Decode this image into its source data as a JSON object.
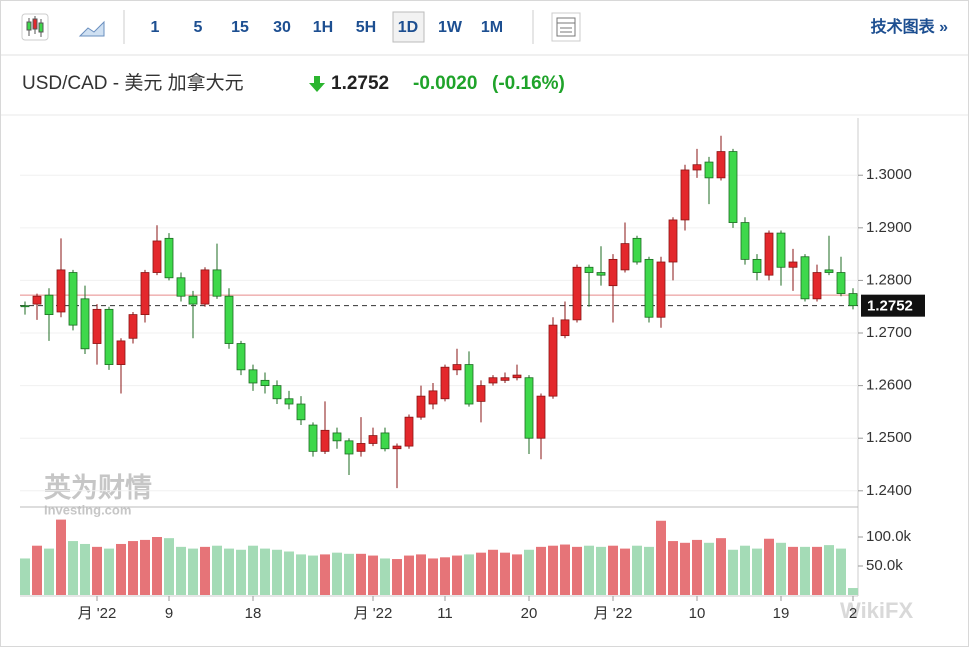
{
  "toolbar": {
    "intervals": [
      "1",
      "5",
      "15",
      "30",
      "1H",
      "5H",
      "1D",
      "1W",
      "1M"
    ],
    "active": 6,
    "link": "技术图表 »"
  },
  "header": {
    "symbol": "USD/CAD - 美元 加拿大元",
    "price": "1.2752",
    "change": "-0.0020",
    "change_pct": "(-0.16%)"
  },
  "watermarks": {
    "logo": "英为财情",
    "site": "Investing.com",
    "corner": "WikiFX"
  },
  "chart_data": {
    "type": "candlestick",
    "categories": [
      null,
      null,
      null,
      null,
      null,
      null,
      "月 '22",
      null,
      null,
      null,
      null,
      null,
      "9",
      null,
      null,
      null,
      null,
      null,
      null,
      "18",
      null,
      null,
      null,
      null,
      null,
      null,
      null,
      null,
      null,
      "月 '22",
      null,
      null,
      null,
      null,
      null,
      "11",
      null,
      null,
      null,
      null,
      null,
      null,
      "20",
      null,
      null,
      null,
      null,
      null,
      null,
      "月 '22",
      null,
      null,
      null,
      null,
      null,
      null,
      "10",
      null,
      null,
      null,
      null,
      null,
      null,
      "19",
      null,
      null,
      null,
      null,
      null,
      "2"
    ],
    "open": [
      1.2752,
      1.2755,
      1.2772,
      1.274,
      1.2815,
      1.2765,
      1.268,
      1.2745,
      1.264,
      1.269,
      1.2735,
      1.2815,
      1.288,
      1.2805,
      1.277,
      1.2755,
      1.282,
      1.277,
      1.268,
      1.263,
      1.261,
      1.26,
      1.2575,
      1.2565,
      1.2525,
      1.2475,
      1.251,
      1.2495,
      1.2475,
      1.249,
      1.251,
      1.248,
      1.2485,
      1.254,
      1.2565,
      1.2575,
      1.263,
      1.264,
      1.257,
      1.2605,
      1.261,
      1.2615,
      1.2615,
      1.25,
      1.258,
      1.2695,
      1.2725,
      1.2825,
      1.2815,
      1.279,
      1.282,
      1.288,
      1.284,
      1.273,
      1.2835,
      1.2915,
      1.301,
      1.3025,
      1.2995,
      1.3045,
      1.291,
      1.284,
      1.281,
      1.289,
      1.2825,
      1.2845,
      1.2765,
      1.282,
      1.2815,
      1.2775
    ],
    "high": [
      1.276,
      1.2775,
      1.2785,
      1.288,
      1.282,
      1.279,
      1.2755,
      1.275,
      1.269,
      1.274,
      1.282,
      1.2905,
      1.289,
      1.2815,
      1.278,
      1.2825,
      1.287,
      1.2785,
      1.2685,
      1.264,
      1.2625,
      1.261,
      1.259,
      1.258,
      1.253,
      1.257,
      1.252,
      1.25,
      1.254,
      1.252,
      1.252,
      1.249,
      1.2545,
      1.26,
      1.2605,
      1.264,
      1.267,
      1.2665,
      1.261,
      1.262,
      1.2625,
      1.264,
      1.262,
      1.2585,
      1.273,
      1.276,
      1.283,
      1.283,
      1.2865,
      1.285,
      1.291,
      1.2885,
      1.2845,
      1.2845,
      1.292,
      1.302,
      1.305,
      1.3035,
      1.3075,
      1.305,
      1.292,
      1.285,
      1.2895,
      1.2895,
      1.286,
      1.285,
      1.283,
      1.2885,
      1.2845,
      1.2785
    ],
    "low": [
      1.2735,
      1.2725,
      1.2685,
      1.273,
      1.2705,
      1.266,
      1.264,
      1.263,
      1.2585,
      1.268,
      1.272,
      1.281,
      1.28,
      1.276,
      1.269,
      1.275,
      1.2765,
      1.267,
      1.262,
      1.259,
      1.2585,
      1.2565,
      1.2555,
      1.2525,
      1.2465,
      1.247,
      1.248,
      1.243,
      1.2465,
      1.2485,
      1.2475,
      1.2405,
      1.248,
      1.2535,
      1.2555,
      1.257,
      1.262,
      1.256,
      1.253,
      1.26,
      1.2605,
      1.261,
      1.247,
      1.246,
      1.2575,
      1.269,
      1.272,
      1.275,
      1.279,
      1.272,
      1.2815,
      1.283,
      1.272,
      1.271,
      1.28,
      1.2895,
      1.2995,
      1.2945,
      1.299,
      1.29,
      1.283,
      1.28,
      1.28,
      1.279,
      1.278,
      1.276,
      1.276,
      1.281,
      1.277,
      1.2745
    ],
    "close": [
      1.275,
      1.277,
      1.2735,
      1.282,
      1.2715,
      1.267,
      1.2745,
      1.264,
      1.2685,
      1.2735,
      1.2815,
      1.2875,
      1.2805,
      1.277,
      1.2755,
      1.282,
      1.277,
      1.268,
      1.263,
      1.2605,
      1.26,
      1.2575,
      1.2565,
      1.2535,
      1.2475,
      1.2515,
      1.2495,
      1.247,
      1.249,
      1.2505,
      1.248,
      1.2485,
      1.254,
      1.258,
      1.259,
      1.2635,
      1.264,
      1.2565,
      1.26,
      1.2615,
      1.2615,
      1.262,
      1.25,
      1.258,
      1.2715,
      1.2725,
      1.2825,
      1.2815,
      1.281,
      1.284,
      1.287,
      1.2835,
      1.273,
      1.2835,
      1.2915,
      1.301,
      1.302,
      1.2995,
      1.3045,
      1.291,
      1.284,
      1.2815,
      1.289,
      1.2825,
      1.2835,
      1.2765,
      1.2815,
      1.2815,
      1.2775,
      1.2752
    ],
    "up_color": "#e3282c",
    "down_color": "#3ed84b",
    "ylim": [
      1.2373,
      1.3105
    ],
    "yticks": [
      {
        "value": 1.24,
        "label": "1.2400"
      },
      {
        "value": 1.25,
        "label": "1.2500"
      },
      {
        "value": 1.26,
        "label": "1.2600"
      },
      {
        "value": 1.27,
        "label": "1.2700"
      },
      {
        "value": 1.28,
        "label": "1.2800"
      },
      {
        "value": 1.29,
        "label": "1.2900"
      },
      {
        "value": 1.3,
        "label": "1.3000"
      }
    ],
    "last_price": 1.2752,
    "reference_line": 1.2772,
    "volume": {
      "values": [
        63000,
        85000,
        80000,
        130000,
        93000,
        88000,
        83000,
        80000,
        88000,
        93000,
        95000,
        100000,
        98000,
        83000,
        80000,
        83000,
        85000,
        80000,
        78000,
        85000,
        80000,
        78000,
        75000,
        70000,
        68000,
        70000,
        73000,
        71000,
        71000,
        68000,
        63000,
        62000,
        68000,
        70000,
        63000,
        65000,
        68000,
        70000,
        73000,
        78000,
        73000,
        70000,
        78000,
        83000,
        85000,
        87000,
        83000,
        85000,
        83000,
        85000,
        80000,
        85000,
        83000,
        128000,
        93000,
        90000,
        95000,
        90000,
        98000,
        78000,
        85000,
        80000,
        97000,
        90000,
        83000,
        83000,
        83000,
        86000,
        80000,
        12000
      ],
      "up_color": "#e67478",
      "down_color": "#a4dbb6",
      "ylim": [
        0,
        150000
      ],
      "yticks": [
        {
          "value": 50000,
          "label": "50.0k"
        },
        {
          "value": 100000,
          "label": "100.0k"
        }
      ]
    }
  }
}
